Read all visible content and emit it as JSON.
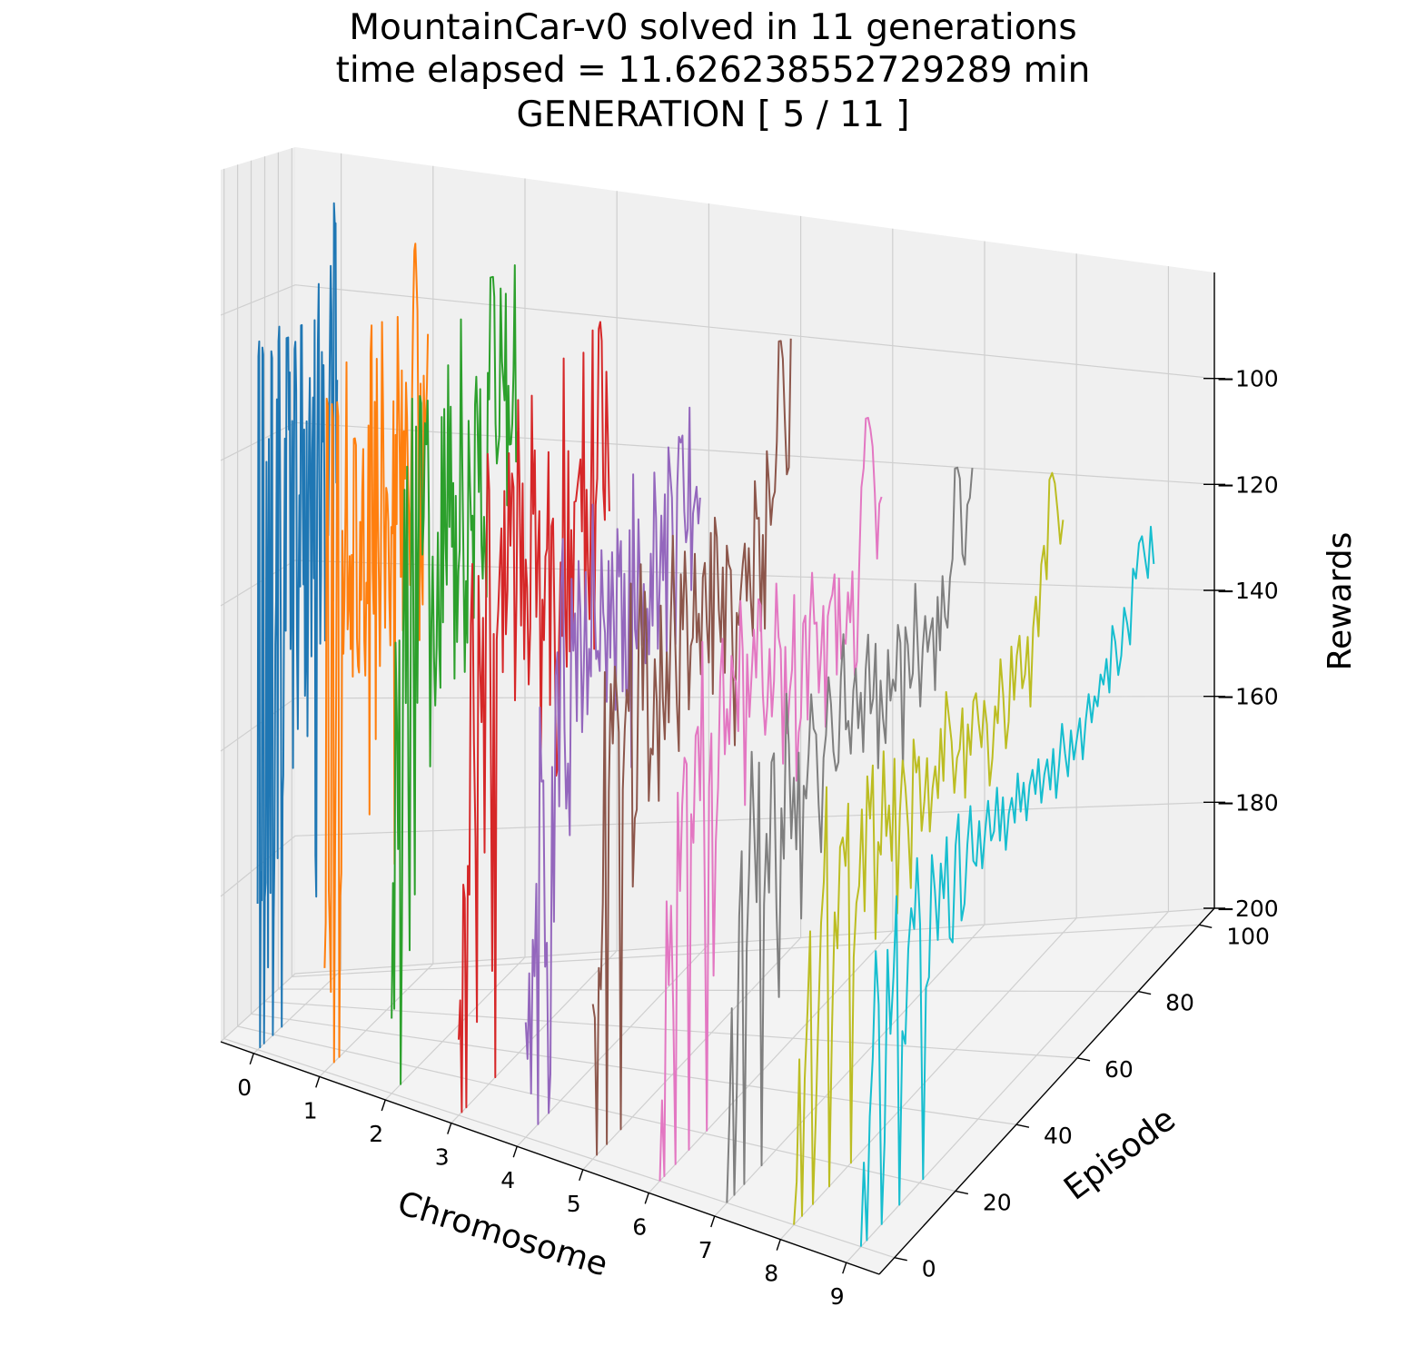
{
  "chart_data": {
    "type": "line",
    "projection": "3d",
    "title": [
      "MountainCar-v0 solved in 11 generations",
      "time elapsed = 11.626238552729289 min",
      "GENERATION [ 5 / 11 ]"
    ],
    "xlabel": "Chromosome",
    "ylabel": "Episode",
    "zlabel": "Rewards",
    "x_ticks": [
      0,
      1,
      2,
      3,
      4,
      5,
      6,
      7,
      8,
      9
    ],
    "y_ticks": [
      0,
      20,
      40,
      60,
      80,
      100
    ],
    "z_ticks": [
      -100,
      -120,
      -140,
      -160,
      -180,
      -200
    ],
    "xlim": [
      -0.5,
      9.5
    ],
    "ylim": [
      -5,
      105
    ],
    "zlim": [
      -200,
      -80
    ],
    "grid": true,
    "series": [
      {
        "x": 0,
        "color": "#1f77b4",
        "values": [
          -180,
          -105,
          -103,
          -200,
          -176,
          -180,
          -104,
          -105,
          -200,
          -180,
          -178,
          -120,
          -143,
          -190,
          -117,
          -150,
          -180,
          -105,
          -106,
          -200,
          -184,
          -175,
          -146,
          -140,
          -112,
          -176,
          -104,
          -102,
          -124,
          -149,
          -200,
          -168,
          -165,
          -140,
          -118,
          -145,
          -104,
          -104,
          -104,
          -117,
          -109,
          -148,
          -140,
          -116,
          -165,
          -131,
          -106,
          -105,
          -112,
          -148,
          -160,
          -140,
          -127,
          -140,
          -103,
          -103,
          -127,
          -140,
          -118,
          -156,
          -150,
          -117,
          -162,
          -136,
          -118,
          -111,
          -128,
          -151,
          -122,
          -114,
          -140,
          -103,
          -180,
          -186,
          -129,
          -106,
          -98,
          -134,
          -150,
          -140,
          -108,
          -121,
          -110,
          -127,
          -150,
          -144,
          -139,
          -123,
          -135,
          -118,
          -106,
          -96,
          -103,
          -135,
          -145,
          -87,
          -90,
          -90,
          -128,
          -113
        ]
      },
      {
        "x": 1,
        "color": "#ff7f0e",
        "values": [
          -186,
          -180,
          -109,
          -110,
          -176,
          -182,
          -190,
          -110,
          -112,
          -200,
          -172,
          -150,
          -110,
          -112,
          -200,
          -178,
          -175,
          -128,
          -145,
          -137,
          -125,
          -105,
          -142,
          -139,
          -132,
          -145,
          -132,
          -149,
          -116,
          -116,
          -117,
          -144,
          -148,
          -149,
          -128,
          -139,
          -124,
          -118,
          -145,
          -150,
          -137,
          -140,
          -115,
          -170,
          -105,
          -101,
          -136,
          -142,
          -112,
          -160,
          -106,
          -128,
          -137,
          -150,
          -135,
          -101,
          -113,
          -131,
          -145,
          -125,
          -126,
          -130,
          -141,
          -148,
          -131,
          -132,
          -113,
          -180,
          -118,
          -131,
          -101,
          -112,
          -121,
          -139,
          -109,
          -147,
          -118,
          -125,
          -111,
          -116,
          -126,
          -131,
          -141,
          -124,
          -111,
          -100,
          -92,
          -91,
          -96,
          -101,
          -124,
          -150,
          -112,
          -139,
          -145,
          -111,
          -120,
          -118,
          -113,
          -105
        ]
      },
      {
        "x": 2,
        "color": "#2ca02c",
        "values": [
          -190,
          -172,
          -189,
          -140,
          -150,
          -168,
          -140,
          -200,
          -180,
          -140,
          -120,
          -149,
          -117,
          -160,
          -183,
          -135,
          -108,
          -140,
          -176,
          -112,
          -150,
          -127,
          -108,
          -109,
          -130,
          -125,
          -112,
          -115,
          -109,
          -125,
          -160,
          -140,
          -131,
          -145,
          -152,
          -144,
          -128,
          -144,
          -150,
          -112,
          -141,
          -111,
          -130,
          -136,
          -105,
          -128,
          -111,
          -131,
          -122,
          -150,
          -124,
          -145,
          -135,
          -132,
          -99,
          -119,
          -134,
          -150,
          -137,
          -146,
          -114,
          -123,
          -130,
          -128,
          -143,
          -112,
          -108,
          -115,
          -125,
          -110,
          -133,
          -138,
          -129,
          -135,
          -141,
          -108,
          -112,
          -94,
          -94,
          -94,
          -97,
          -116,
          -122,
          -120,
          -118,
          -96,
          -107,
          -110,
          -113,
          -97,
          -129,
          -111,
          -120,
          -120,
          -117,
          -109,
          -93,
          -123,
          -119,
          -118
        ]
      },
      {
        "x": 3,
        "color": "#d62728",
        "values": [
          -190,
          -185,
          -200,
          -170,
          -172,
          -200,
          -168,
          -172,
          -136,
          -128,
          -152,
          -165,
          -190,
          -130,
          -142,
          -150,
          -136,
          -168,
          -132,
          -114,
          -119,
          -150,
          -185,
          -139,
          -200,
          -140,
          -136,
          -130,
          -125,
          -145,
          -120,
          -140,
          -134,
          -115,
          -128,
          -118,
          -120,
          -150,
          -135,
          -108,
          -121,
          -140,
          -120,
          -145,
          -131,
          -135,
          -149,
          -141,
          -108,
          -125,
          -116,
          -140,
          -131,
          -125,
          -160,
          -138,
          -144,
          -132,
          -131,
          -117,
          -154,
          -128,
          -127,
          -143,
          -165,
          -164,
          -145,
          -134,
          -145,
          -104,
          -141,
          -150,
          -118,
          -148,
          -130,
          -146,
          -126,
          -126,
          -124,
          -122,
          -120,
          -131,
          -104,
          -145,
          -125,
          -138,
          -145,
          -125,
          -101,
          -150,
          -128,
          -124,
          -101,
          -100,
          -103,
          -126,
          -131,
          -108,
          -118,
          -130
        ]
      },
      {
        "x": 4,
        "color": "#9467bd",
        "values": [
          -185,
          -190,
          -179,
          -195,
          -175,
          -180,
          -168,
          -200,
          -145,
          -155,
          -155,
          -180,
          -177,
          -200,
          -195,
          -154,
          -175,
          -142,
          -139,
          -160,
          -131,
          -124,
          -150,
          -161,
          -155,
          -165,
          -130,
          -140,
          -135,
          -150,
          -128,
          -135,
          -152,
          -143,
          -130,
          -150,
          -141,
          -145,
          -121,
          -135,
          -143,
          -142,
          -145,
          -128,
          -137,
          -140,
          -150,
          -130,
          -144,
          -129,
          -139,
          -152,
          -126,
          -133,
          -128,
          -150,
          -133,
          -151,
          -151,
          -127,
          -162,
          -119,
          -142,
          -145,
          -126,
          -137,
          -145,
          -136,
          -148,
          -140,
          -147,
          -132,
          -143,
          -120,
          -127,
          -147,
          -138,
          -127,
          -137,
          -124,
          -149,
          -117,
          -121,
          -125,
          -139,
          -148,
          -124,
          -116,
          -117,
          -116,
          -128,
          -133,
          -131,
          -112,
          -141,
          -129,
          -127,
          -125,
          -131,
          -127
        ]
      },
      {
        "x": 5,
        "color": "#8c564b",
        "values": [
          -180,
          -182,
          -200,
          -176,
          -179,
          -168,
          -138,
          -200,
          -154,
          -140,
          -148,
          -138,
          -142,
          -147,
          -200,
          -155,
          -147,
          -142,
          -145,
          -128,
          -169,
          -160,
          -159,
          -135,
          -126,
          -146,
          -130,
          -137,
          -159,
          -152,
          -153,
          -140,
          -146,
          -160,
          -133,
          -146,
          -152,
          -140,
          -150,
          -136,
          -124,
          -137,
          -148,
          -155,
          -130,
          -138,
          -127,
          -135,
          -150,
          -141,
          -140,
          -128,
          -141,
          -137,
          -146,
          -132,
          -130,
          -139,
          -145,
          -126,
          -150,
          -124,
          -127,
          -138,
          -143,
          -132,
          -148,
          -129,
          -132,
          -133,
          -147,
          -160,
          -140,
          -142,
          -137,
          -133,
          -130,
          -139,
          -131,
          -139,
          -145,
          -121,
          -127,
          -127,
          -145,
          -130,
          -145,
          -117,
          -122,
          -129,
          -125,
          -124,
          -116,
          -100,
          -100,
          -103,
          -113,
          -122,
          -121,
          -100
        ]
      },
      {
        "x": 6,
        "color": "#e377c2",
        "values": [
          -200,
          -190,
          -200,
          -165,
          -176,
          -166,
          -180,
          -200,
          -152,
          -165,
          -154,
          -148,
          -149,
          -200,
          -156,
          -160,
          -146,
          -145,
          -155,
          -134,
          -166,
          -200,
          -154,
          -147,
          -180,
          -162,
          -155,
          -140,
          -135,
          -151,
          -145,
          -150,
          -138,
          -141,
          -142,
          -149,
          -131,
          -138,
          -160,
          -139,
          -148,
          -142,
          -136,
          -143,
          -132,
          -133,
          -146,
          -152,
          -148,
          -140,
          -150,
          -145,
          -131,
          -139,
          -141,
          -158,
          -141,
          -154,
          -148,
          -145,
          -134,
          -162,
          -155,
          -153,
          -139,
          -138,
          -154,
          -139,
          -132,
          -140,
          -140,
          -151,
          -145,
          -138,
          -157,
          -140,
          -138,
          -137,
          -134,
          -150,
          -135,
          -148,
          -145,
          -146,
          -138,
          -143,
          -135,
          -152,
          -150,
          -135,
          -122,
          -119,
          -111,
          -111,
          -113,
          -116,
          -124,
          -135,
          -126,
          -125
        ]
      },
      {
        "x": 7,
        "color": "#7f7f7f",
        "values": [
          -200,
          -190,
          -176,
          -200,
          -187,
          -165,
          -157,
          -200,
          -170,
          -160,
          -145,
          -155,
          -165,
          -147,
          -200,
          -166,
          -157,
          -165,
          -148,
          -147,
          -168,
          -180,
          -155,
          -162,
          -140,
          -147,
          -160,
          -152,
          -162,
          -149,
          -172,
          -154,
          -156,
          -150,
          -142,
          -147,
          -148,
          -158,
          -165,
          -152,
          -149,
          -141,
          -145,
          -152,
          -155,
          -154,
          -142,
          -136,
          -150,
          -149,
          -154,
          -145,
          -142,
          -151,
          -146,
          -155,
          -143,
          -138,
          -150,
          -148,
          -140,
          -159,
          -146,
          -152,
          -156,
          -142,
          -150,
          -147,
          -149,
          -139,
          -142,
          -162,
          -140,
          -143,
          -150,
          -148,
          -134,
          -144,
          -154,
          -145,
          -140,
          -146,
          -143,
          -141,
          -153,
          -138,
          -147,
          -135,
          -142,
          -144,
          -136,
          -133,
          -118,
          -118,
          -120,
          -133,
          -135,
          -125,
          -124,
          -119
        ]
      },
      {
        "x": 8,
        "color": "#bcbd22",
        "values": [
          -200,
          -195,
          -180,
          -200,
          -183,
          -175,
          -165,
          -200,
          -190,
          -177,
          -165,
          -160,
          -148,
          -200,
          -180,
          -165,
          -170,
          -157,
          -156,
          -160,
          -152,
          -200,
          -173,
          -166,
          -164,
          -154,
          -168,
          -150,
          -156,
          -149,
          -173,
          -160,
          -162,
          -148,
          -160,
          -156,
          -164,
          -150,
          -172,
          -158,
          -151,
          -155,
          -161,
          -170,
          -149,
          -154,
          -152,
          -163,
          -159,
          -153,
          -164,
          -158,
          -155,
          -160,
          -150,
          -158,
          -145,
          -149,
          -153,
          -161,
          -156,
          -155,
          -149,
          -163,
          -152,
          -157,
          -149,
          -148,
          -153,
          -157,
          -150,
          -154,
          -164,
          -160,
          -152,
          -155,
          -145,
          -151,
          -160,
          -156,
          -144,
          -153,
          -146,
          -143,
          -152,
          -150,
          -144,
          -156,
          -143,
          -138,
          -145,
          -133,
          -130,
          -136,
          -119,
          -118,
          -120,
          -125,
          -131,
          -127
        ]
      },
      {
        "x": 9,
        "color": "#17becf",
        "values": [
          -200,
          -190,
          -200,
          -185,
          -178,
          -165,
          -172,
          -200,
          -190,
          -166,
          -177,
          -170,
          -160,
          -200,
          -178,
          -180,
          -168,
          -163,
          -166,
          -157,
          -166,
          -200,
          -175,
          -174,
          -158,
          -163,
          -170,
          -160,
          -165,
          -157,
          -171,
          -172,
          -159,
          -155,
          -170,
          -168,
          -160,
          -155,
          -163,
          -164,
          -158,
          -165,
          -160,
          -156,
          -162,
          -161,
          -155,
          -163,
          -157,
          -165,
          -160,
          -158,
          -162,
          -155,
          -161,
          -157,
          -163,
          -158,
          -156,
          -160,
          -155,
          -162,
          -158,
          -156,
          -161,
          -155,
          -163,
          -158,
          -152,
          -157,
          -161,
          -154,
          -159,
          -156,
          -153,
          -160,
          -154,
          -150,
          -155,
          -151,
          -153,
          -148,
          -150,
          -146,
          -152,
          -141,
          -144,
          -150,
          -147,
          -139,
          -142,
          -146,
          -133,
          -135,
          -129,
          -128,
          -132,
          -136,
          -127,
          -134
        ]
      }
    ]
  }
}
